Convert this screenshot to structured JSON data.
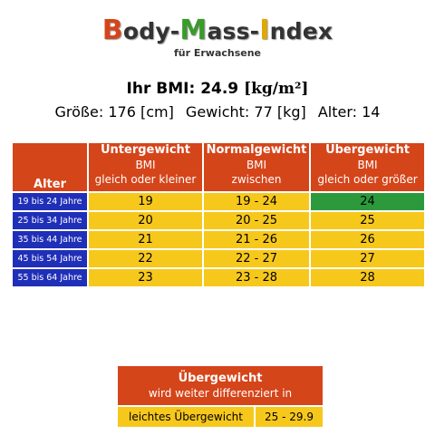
{
  "logo": {
    "part1_cap": "B",
    "part1_rest": "ody-",
    "part2_cap": "M",
    "part2_rest": "ass-",
    "part3_cap": "I",
    "part3_rest": "ndex",
    "cap_colors": [
      "#d5451a",
      "#3a9a2a",
      "#e0a800"
    ]
  },
  "subtitle": "für Erwachsene",
  "result": {
    "label": "Ihr BMI:",
    "value": "24.9",
    "unit": "[kg/m²]"
  },
  "stats": {
    "height": "Größe: 176 [cm]",
    "weight": "Gewicht: 77 [kg]",
    "age": "Alter: 14"
  },
  "table": {
    "age_header": "Alter",
    "columns": [
      {
        "title": "Untergewicht",
        "line1": "BMI",
        "line2": "gleich oder kleiner"
      },
      {
        "title": "Normalgewicht",
        "line1": "BMI",
        "line2": "zwischen"
      },
      {
        "title": "Übergewicht",
        "line1": "BMI",
        "line2": "gleich oder größer"
      }
    ],
    "rows": [
      {
        "age": "19 bis 24 Jahre",
        "under": "19",
        "normal": "19 - 24",
        "over": "24"
      },
      {
        "age": "25 bis 34 Jahre",
        "under": "20",
        "normal": "20 - 25",
        "over": "25"
      },
      {
        "age": "35 bis 44 Jahre",
        "under": "21",
        "normal": "21 - 26",
        "over": "26"
      },
      {
        "age": "45 bis 54 Jahre",
        "under": "22",
        "normal": "22 - 27",
        "over": "27"
      },
      {
        "age": "55 bis 64 Jahre",
        "under": "23",
        "normal": "23 - 28",
        "over": "28"
      }
    ],
    "highlight_row": 0,
    "colors": {
      "header": "#d5451a",
      "age": "#1f2fb8",
      "cell": "#f7c81c",
      "highlight": "#2c9a3b"
    }
  },
  "overweight": {
    "title": "Übergewicht",
    "subtitle": "wird weiter differenziert in",
    "label": "leichtes Übergewicht",
    "range": "25 - 29.9"
  }
}
